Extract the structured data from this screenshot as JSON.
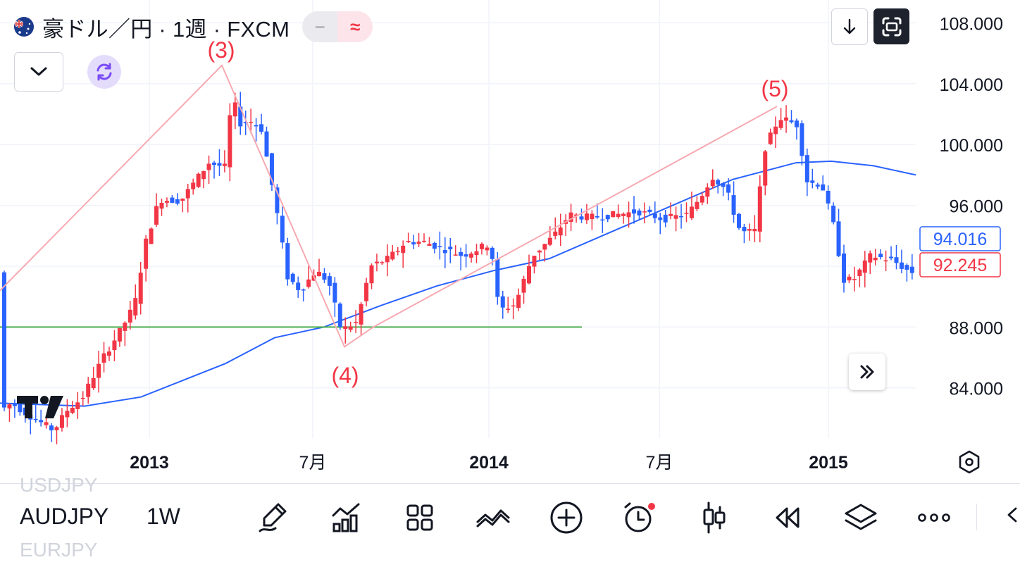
{
  "header": {
    "title": "豪ドル／円 · 1週 · FXCM",
    "pill_minus": "−",
    "pill_approx": "≈",
    "flag_icon": "australia-flag-icon"
  },
  "colors": {
    "up": "#f23645",
    "down": "#2962ff",
    "ma_line": "#2962ff",
    "wave_line": "#f7a9b1",
    "support_line": "#4caf50",
    "grid": "#f0f3fa",
    "text": "#131722"
  },
  "chart_data": {
    "type": "candlestick",
    "symbol": "AUDJPY",
    "interval": "1W",
    "ylim": [
      80.7,
      109.5
    ],
    "y_ticks": [
      "108.000",
      "104.000",
      "100.000",
      "96.000",
      "88.000",
      "84.000"
    ],
    "x_ticks": [
      "2013",
      "7月",
      "2014",
      "7月",
      "2015"
    ],
    "last_price": "92.245",
    "ma_value": "94.016",
    "wave_labels": [
      "(3)",
      "(4)",
      "(5)"
    ],
    "support_level": 88.0
  },
  "toolbar": {
    "prev_symbol": "USDJPY",
    "symbol": "AUDJPY",
    "next_symbol": "EURJPY",
    "timeframe": "1W",
    "tools": [
      {
        "name": "drawing-tool-icon"
      },
      {
        "name": "indicators-icon"
      },
      {
        "name": "layout-icon"
      },
      {
        "name": "compare-icon"
      },
      {
        "name": "add-icon"
      },
      {
        "name": "alert-icon"
      },
      {
        "name": "chart-type-icon"
      },
      {
        "name": "replay-icon"
      },
      {
        "name": "layers-icon"
      },
      {
        "name": "more-icon"
      }
    ]
  }
}
